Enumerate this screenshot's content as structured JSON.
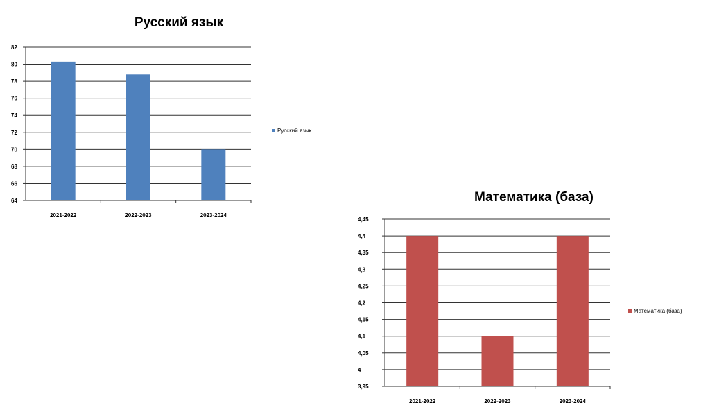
{
  "chart_data": [
    {
      "type": "bar",
      "title": "Русский язык",
      "categories": [
        "2021-2022",
        "2022-2023",
        "2023-2024"
      ],
      "series": [
        {
          "name": "Русский язык",
          "values": [
            80.3,
            78.8,
            70
          ]
        }
      ],
      "ylim": [
        64,
        82
      ],
      "yticks": [
        64,
        66,
        68,
        70,
        72,
        74,
        76,
        78,
        80,
        82
      ],
      "ytick_labels": [
        "64",
        "66",
        "68",
        "70",
        "72",
        "74",
        "76",
        "78",
        "80",
        "82"
      ],
      "grid": true,
      "legend": "right",
      "color": "#4F81BD"
    },
    {
      "type": "bar",
      "title": "Математика (база)",
      "categories": [
        "2021-2022",
        "2022-2023",
        "2023-2024"
      ],
      "series": [
        {
          "name": "Математика (база)",
          "values": [
            4.4,
            4.1,
            4.4
          ]
        }
      ],
      "ylim": [
        3.95,
        4.45
      ],
      "yticks": [
        3.95,
        4,
        4.05,
        4.1,
        4.15,
        4.2,
        4.25,
        4.3,
        4.35,
        4.4,
        4.45
      ],
      "ytick_labels": [
        "3,95",
        "4",
        "4,05",
        "4,1",
        "4,15",
        "4,2",
        "4,25",
        "4,3",
        "4,35",
        "4,4",
        "4,45"
      ],
      "grid": true,
      "legend": "right",
      "color": "#C0504D"
    }
  ]
}
